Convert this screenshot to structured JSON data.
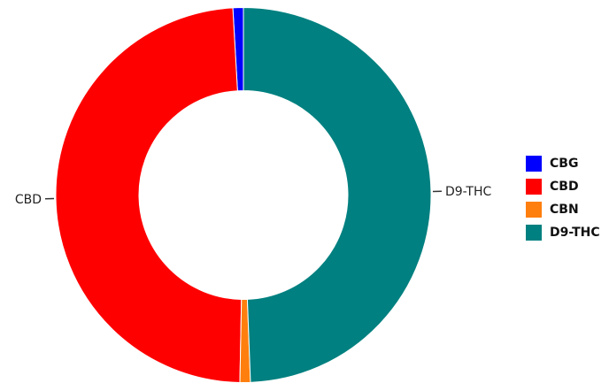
{
  "chart_data": {
    "type": "pie",
    "donut": true,
    "slices": [
      {
        "label": "CBG",
        "value": 0.9,
        "color": "#0000ff"
      },
      {
        "label": "CBD",
        "value": 48.8,
        "color": "#ff0000"
      },
      {
        "label": "CBN",
        "value": 0.9,
        "color": "#ff7f0e"
      },
      {
        "label": "D9-THC",
        "value": 49.4,
        "color": "#008080"
      }
    ],
    "outer_labels": [
      {
        "slice": "CBD",
        "text": "CBD"
      },
      {
        "slice": "D9-THC",
        "text": "D9-THC"
      }
    ],
    "legend": {
      "position": "right",
      "entries": [
        "CBG",
        "CBD",
        "CBN",
        "D9-THC"
      ]
    },
    "start_angle": "top",
    "direction": "counter-clockwise"
  }
}
